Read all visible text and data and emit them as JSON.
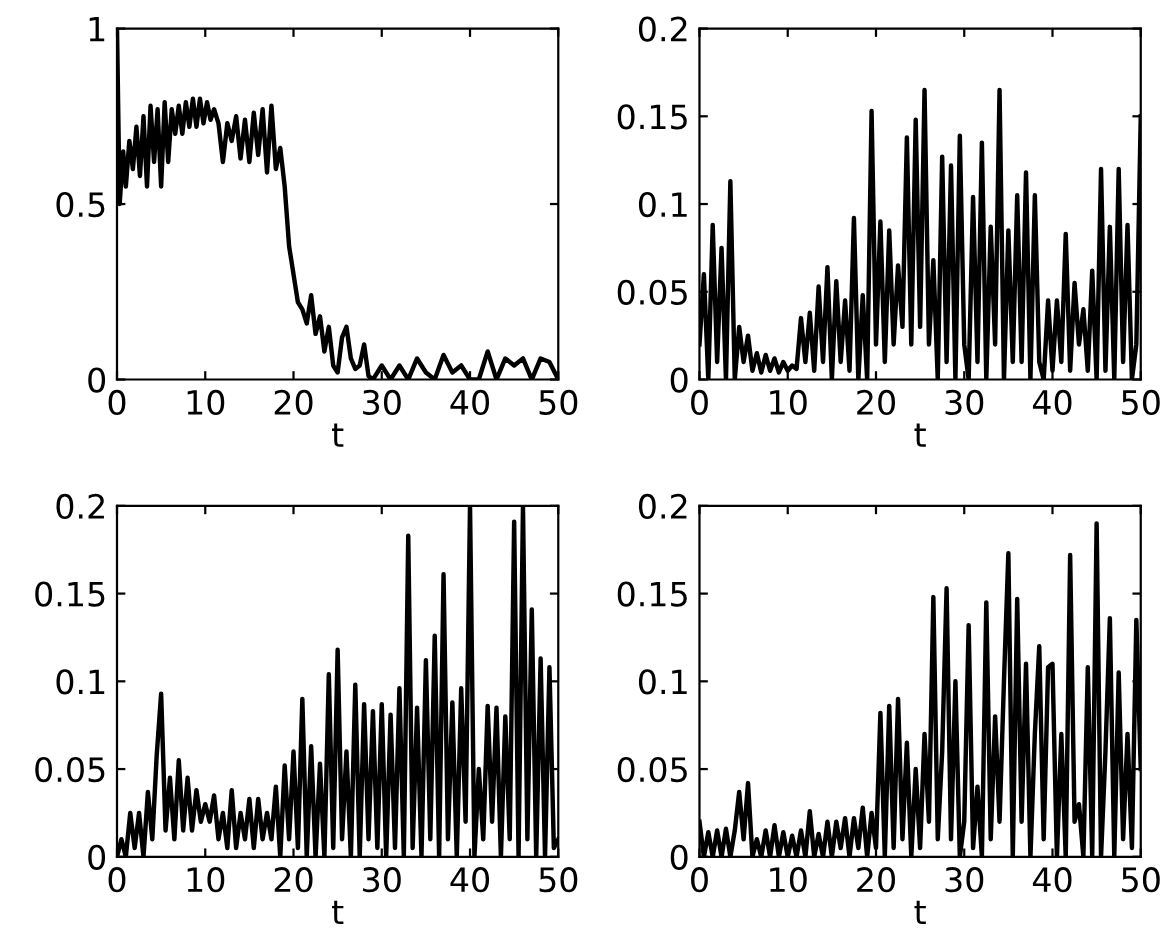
{
  "chart_data": [
    {
      "type": "line",
      "xlabel": "t",
      "xlim": [
        0,
        50
      ],
      "ylim": [
        0,
        1
      ],
      "xticks": [
        0,
        10,
        20,
        30,
        40,
        50
      ],
      "yticks": [
        0,
        0.5,
        1
      ],
      "grid": false,
      "legend": false,
      "x": [
        0,
        0.3,
        0.7,
        1,
        1.4,
        1.8,
        2.2,
        2.6,
        3,
        3.4,
        3.8,
        4.2,
        4.6,
        5,
        5.4,
        5.8,
        6.2,
        6.6,
        7,
        7.4,
        7.8,
        8.2,
        8.6,
        9,
        9.4,
        9.8,
        10.2,
        10.6,
        11,
        11.5,
        12,
        12.5,
        13,
        13.5,
        14,
        14.5,
        15,
        15.5,
        16,
        16.5,
        17,
        17.5,
        18,
        18.5,
        19,
        19.5,
        20,
        20.5,
        21,
        21.5,
        22,
        22.5,
        23,
        23.5,
        24,
        24.5,
        25,
        25.5,
        26,
        26.5,
        27,
        27.5,
        28,
        28.5,
        29,
        30,
        31,
        32,
        33,
        34,
        35,
        36,
        37,
        38,
        39,
        40,
        41,
        42,
        43,
        44,
        45,
        46,
        47,
        48,
        49,
        50
      ],
      "series": [
        {
          "color": "#000000",
          "values": [
            1.0,
            0.5,
            0.65,
            0.55,
            0.68,
            0.6,
            0.72,
            0.58,
            0.75,
            0.55,
            0.78,
            0.62,
            0.77,
            0.55,
            0.79,
            0.62,
            0.77,
            0.7,
            0.78,
            0.7,
            0.79,
            0.72,
            0.8,
            0.72,
            0.8,
            0.73,
            0.79,
            0.74,
            0.77,
            0.73,
            0.62,
            0.73,
            0.68,
            0.75,
            0.63,
            0.74,
            0.62,
            0.76,
            0.64,
            0.77,
            0.59,
            0.78,
            0.6,
            0.66,
            0.55,
            0.38,
            0.3,
            0.22,
            0.2,
            0.16,
            0.24,
            0.13,
            0.18,
            0.08,
            0.15,
            0.04,
            0.02,
            0.12,
            0.15,
            0.06,
            0.03,
            0.04,
            0.1,
            0.01,
            0.0,
            0.04,
            0.0,
            0.04,
            0.0,
            0.06,
            0.02,
            0.0,
            0.07,
            0.02,
            0.04,
            0.0,
            0.0,
            0.08,
            0.0,
            0.06,
            0.04,
            0.06,
            0.0,
            0.06,
            0.05,
            0.0
          ]
        }
      ]
    },
    {
      "type": "line",
      "xlabel": "t",
      "xlim": [
        0,
        50
      ],
      "ylim": [
        0,
        0.2
      ],
      "xticks": [
        0,
        10,
        20,
        30,
        40,
        50
      ],
      "yticks": [
        0,
        0.05,
        0.1,
        0.15,
        0.2
      ],
      "grid": false,
      "legend": false,
      "x": [
        0,
        0.5,
        1,
        1.5,
        2,
        2.5,
        3,
        3.5,
        4,
        4.5,
        5,
        5.5,
        6,
        6.5,
        7,
        7.5,
        8,
        8.5,
        9,
        9.5,
        10,
        10.5,
        11,
        11.5,
        12,
        12.5,
        13,
        13.5,
        14,
        14.5,
        15,
        15.5,
        16,
        16.5,
        17,
        17.5,
        18,
        18.5,
        19,
        19.5,
        20,
        20.5,
        21,
        21.5,
        22,
        22.5,
        23,
        23.5,
        24,
        24.5,
        25,
        25.5,
        26,
        26.5,
        27,
        27.5,
        28,
        28.5,
        29,
        29.5,
        30,
        30.5,
        31,
        31.5,
        32,
        32.5,
        33,
        33.5,
        34,
        34.5,
        35,
        35.5,
        36,
        36.5,
        37,
        37.5,
        38,
        38.5,
        39,
        39.5,
        40,
        40.5,
        41,
        41.5,
        42,
        42.5,
        43,
        43.5,
        44,
        44.5,
        45,
        45.5,
        46,
        46.5,
        47,
        47.5,
        48,
        48.5,
        49,
        49.5,
        50
      ],
      "series": [
        {
          "color": "#000000",
          "values": [
            0.02,
            0.06,
            0.0,
            0.088,
            0.01,
            0.075,
            0.0,
            0.113,
            0.0,
            0.03,
            0.01,
            0.025,
            0.005,
            0.015,
            0.004,
            0.014,
            0.005,
            0.012,
            0.004,
            0.01,
            0.005,
            0.008,
            0.006,
            0.035,
            0.01,
            0.038,
            0.005,
            0.053,
            0.01,
            0.064,
            0.0,
            0.056,
            0.01,
            0.045,
            0.005,
            0.092,
            0.0,
            0.048,
            0.0,
            0.153,
            0.02,
            0.09,
            0.01,
            0.085,
            0.02,
            0.065,
            0.03,
            0.138,
            0.02,
            0.148,
            0.03,
            0.165,
            0.02,
            0.068,
            0.0,
            0.127,
            0.01,
            0.122,
            0.0,
            0.139,
            0.02,
            0.0,
            0.104,
            0.01,
            0.135,
            0.0,
            0.087,
            0.02,
            0.165,
            0.0,
            0.085,
            0.01,
            0.105,
            0.01,
            0.118,
            0.0,
            0.105,
            0.01,
            0.0,
            0.045,
            0.005,
            0.045,
            0.01,
            0.083,
            0.005,
            0.055,
            0.02,
            0.04,
            0.005,
            0.062,
            0.0,
            0.12,
            0.005,
            0.087,
            0.0,
            0.12,
            0.01,
            0.088,
            0.0,
            0.02,
            0.15
          ]
        }
      ]
    },
    {
      "type": "line",
      "xlabel": "t",
      "xlim": [
        0,
        50
      ],
      "ylim": [
        0,
        0.2
      ],
      "xticks": [
        0,
        10,
        20,
        30,
        40,
        50
      ],
      "yticks": [
        0,
        0.05,
        0.1,
        0.15,
        0.2
      ],
      "grid": false,
      "legend": false,
      "x": [
        0,
        0.5,
        1,
        1.5,
        2,
        2.5,
        3,
        3.5,
        4,
        4.5,
        5,
        5.5,
        6,
        6.5,
        7,
        7.5,
        8,
        8.5,
        9,
        9.5,
        10,
        10.5,
        11,
        11.5,
        12,
        12.5,
        13,
        13.5,
        14,
        14.5,
        15,
        15.5,
        16,
        16.5,
        17,
        17.5,
        18,
        18.5,
        19,
        19.5,
        20,
        20.5,
        21,
        21.5,
        22,
        22.5,
        23,
        23.5,
        24,
        24.5,
        25,
        25.5,
        26,
        26.5,
        27,
        27.5,
        28,
        28.5,
        29,
        29.5,
        30,
        30.5,
        31,
        31.5,
        32,
        32.5,
        33,
        33.5,
        34,
        34.5,
        35,
        35.5,
        36,
        36.5,
        37,
        37.5,
        38,
        38.5,
        39,
        39.5,
        40,
        40.5,
        41,
        41.5,
        42,
        42.5,
        43,
        43.5,
        44,
        44.5,
        45,
        45.5,
        46,
        46.5,
        47,
        47.5,
        48,
        48.5,
        49,
        49.5,
        50
      ],
      "series": [
        {
          "color": "#000000",
          "values": [
            0.0,
            0.01,
            0.0,
            0.025,
            0.005,
            0.025,
            0.0,
            0.037,
            0.01,
            0.058,
            0.093,
            0.015,
            0.045,
            0.01,
            0.055,
            0.015,
            0.045,
            0.015,
            0.038,
            0.02,
            0.03,
            0.02,
            0.035,
            0.01,
            0.025,
            0.005,
            0.038,
            0.005,
            0.025,
            0.01,
            0.033,
            0.005,
            0.033,
            0.01,
            0.025,
            0.01,
            0.04,
            0.0,
            0.052,
            0.01,
            0.06,
            0.005,
            0.09,
            0.0,
            0.063,
            0.0,
            0.053,
            0.0,
            0.104,
            0.005,
            0.118,
            0.01,
            0.06,
            0.0,
            0.098,
            0.0,
            0.087,
            0.01,
            0.083,
            0.005,
            0.087,
            0.0,
            0.081,
            0.005,
            0.096,
            0.0,
            0.183,
            0.005,
            0.085,
            0.0,
            0.112,
            0.01,
            0.126,
            0.0,
            0.161,
            0.01,
            0.088,
            0.0,
            0.096,
            0.02,
            0.2,
            0.0,
            0.05,
            0.01,
            0.086,
            0.02,
            0.085,
            0.0,
            0.08,
            0.01,
            0.191,
            0.0,
            0.2,
            0.01,
            0.141,
            0.0,
            0.113,
            0.0,
            0.108,
            0.005,
            0.01
          ]
        }
      ]
    },
    {
      "type": "line",
      "xlabel": "t",
      "xlim": [
        0,
        50
      ],
      "ylim": [
        0,
        0.2
      ],
      "xticks": [
        0,
        10,
        20,
        30,
        40,
        50
      ],
      "yticks": [
        0,
        0.05,
        0.1,
        0.15,
        0.2
      ],
      "grid": false,
      "legend": false,
      "x": [
        0,
        0.5,
        1,
        1.5,
        2,
        2.5,
        3,
        3.5,
        4,
        4.5,
        5,
        5.5,
        6,
        6.5,
        7,
        7.5,
        8,
        8.5,
        9,
        9.5,
        10,
        10.5,
        11,
        11.5,
        12,
        12.5,
        13,
        13.5,
        14,
        14.5,
        15,
        15.5,
        16,
        16.5,
        17,
        17.5,
        18,
        18.5,
        19,
        19.5,
        20,
        20.5,
        21,
        21.5,
        22,
        22.5,
        23,
        23.5,
        24,
        24.5,
        25,
        25.5,
        26,
        26.5,
        27,
        27.5,
        28,
        28.5,
        29,
        29.5,
        30,
        30.5,
        31,
        31.5,
        32,
        32.5,
        33,
        33.5,
        34,
        34.5,
        35,
        35.5,
        36,
        36.5,
        37,
        37.5,
        38,
        38.5,
        39,
        39.5,
        40,
        40.5,
        41,
        41.5,
        42,
        42.5,
        43,
        43.5,
        44,
        44.5,
        45,
        45.5,
        46,
        46.5,
        47,
        47.5,
        48,
        48.5,
        49,
        49.5,
        50
      ],
      "series": [
        {
          "color": "#000000",
          "values": [
            0.02,
            0.0,
            0.014,
            0.0,
            0.015,
            0.0,
            0.016,
            0.0,
            0.015,
            0.037,
            0.01,
            0.042,
            0.0,
            0.01,
            0.0,
            0.015,
            0.0,
            0.018,
            0.0,
            0.014,
            0.0,
            0.012,
            0.0,
            0.015,
            0.0,
            0.026,
            0.0,
            0.013,
            0.0,
            0.02,
            0.0,
            0.02,
            0.005,
            0.022,
            0.0,
            0.022,
            0.005,
            0.028,
            0.0,
            0.025,
            0.005,
            0.082,
            0.0,
            0.086,
            0.005,
            0.09,
            0.01,
            0.065,
            0.0,
            0.05,
            0.005,
            0.07,
            0.02,
            0.148,
            0.01,
            0.06,
            0.153,
            0.01,
            0.1,
            0.0,
            0.02,
            0.132,
            0.005,
            0.04,
            0.0,
            0.145,
            0.01,
            0.08,
            0.02,
            0.1,
            0.173,
            0.0,
            0.147,
            0.02,
            0.11,
            0.0,
            0.07,
            0.12,
            0.01,
            0.108,
            0.11,
            0.0,
            0.07,
            0.0,
            0.172,
            0.02,
            0.03,
            0.0,
            0.108,
            0.0,
            0.19,
            0.0,
            0.06,
            0.136,
            0.0,
            0.105,
            0.01,
            0.07,
            0.005,
            0.135,
            0.05
          ]
        }
      ]
    }
  ]
}
